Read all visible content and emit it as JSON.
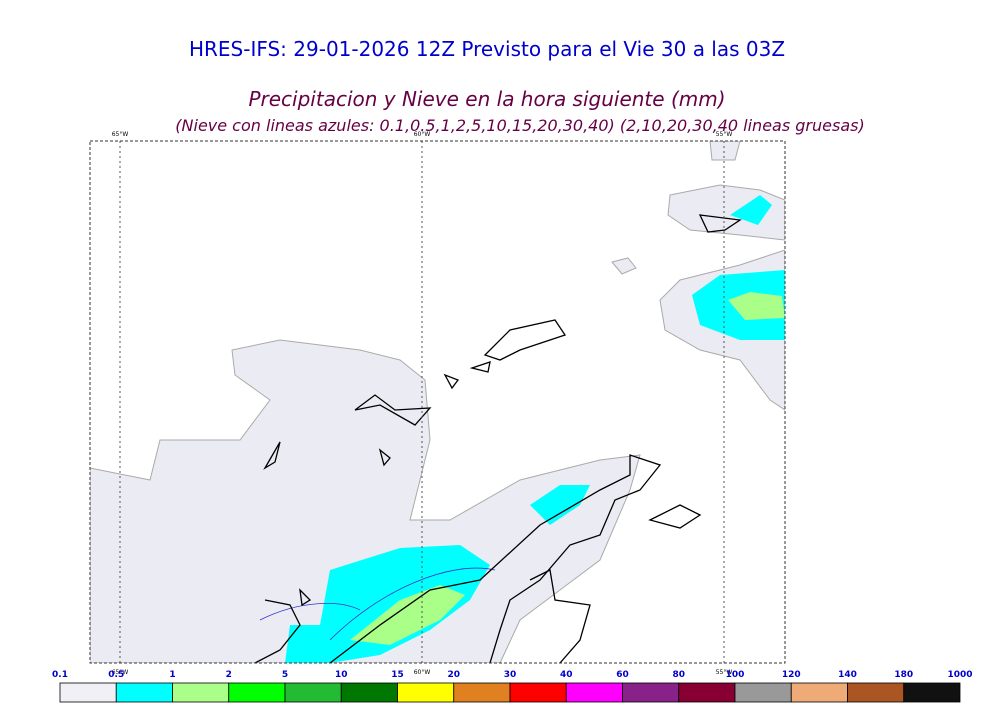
{
  "header": {
    "title": "HRES-IFS: 29-01-2026 12Z Previsto para el Vie 30 a las 03Z",
    "subtitle": "Precipitacion y Nieve en la hora siguiente (mm)",
    "note": "(Nieve con lineas azules: 0.1,0.5,1,2,5,10,15,20,30,40)  (2,10,20,30,40 lineas gruesas)"
  },
  "map": {
    "longitudes": [
      {
        "value": -65,
        "label": "65°W"
      },
      {
        "value": -60,
        "label": "60°W"
      },
      {
        "value": -55,
        "label": "55°W"
      }
    ]
  },
  "colorbar": {
    "labels": [
      "0.1",
      "0.5",
      "1",
      "2",
      "5",
      "10",
      "15",
      "20",
      "30",
      "40",
      "60",
      "80",
      "100",
      "120",
      "140",
      "180",
      "1000"
    ],
    "colors": [
      "#f0f0f6",
      "#00ffff",
      "#aaff88",
      "#00ff00",
      "#22bb33",
      "#007700",
      "#ffff00",
      "#e08020",
      "#ff0000",
      "#ff00ff",
      "#882288",
      "#880033",
      "#999999",
      "#eeaa77",
      "#aa5522",
      "#111111"
    ]
  }
}
